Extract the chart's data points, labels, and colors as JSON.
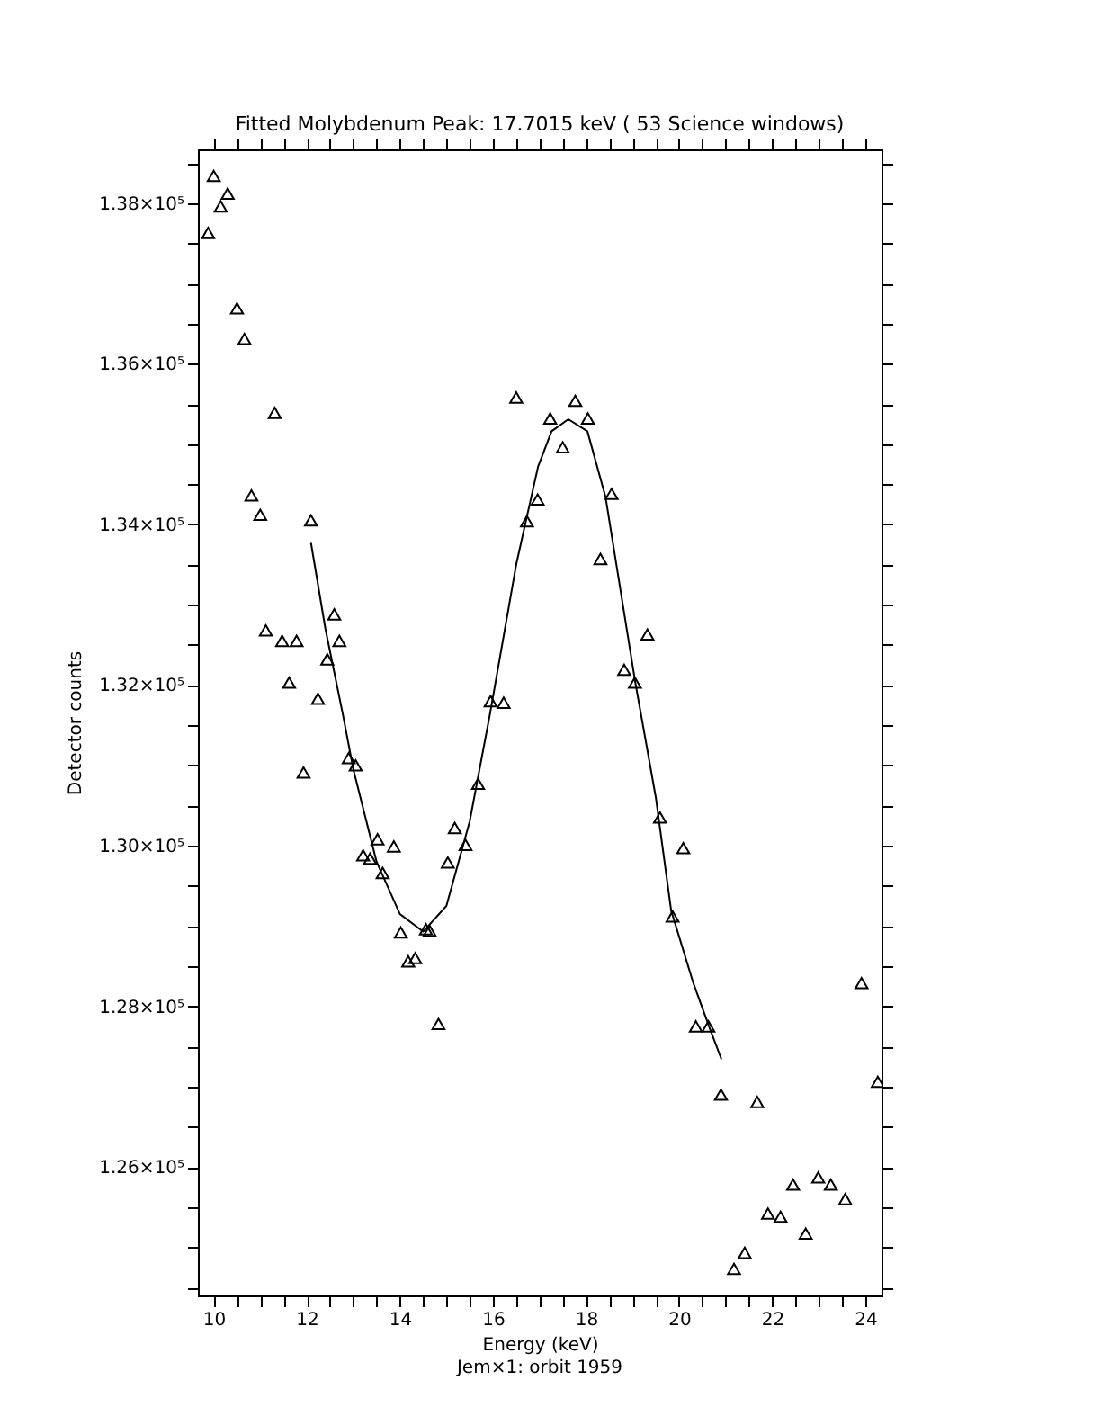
{
  "chart_data": {
    "type": "scatter",
    "title": "Fitted Molybdenum Peak: 17.7015 keV ( 53 Science windows)",
    "xlabel": "Energy (keV)",
    "ylabel": "Detector counts",
    "annotations": [
      "Jem×1: orbit 1959"
    ],
    "xlim": [
      9.66,
      24.35
    ],
    "xticks": [
      10,
      {
        "value": 10.5,
        "label": null
      },
      {
        "value": 11,
        "label": null
      },
      {
        "value": 11.5,
        "label": null
      },
      12,
      {
        "value": 12.5,
        "label": null
      },
      {
        "value": 13,
        "label": null
      },
      {
        "value": 13.5,
        "label": null
      },
      14,
      {
        "value": 14.5,
        "label": null
      },
      {
        "value": 15,
        "label": null
      },
      {
        "value": 15.5,
        "label": null
      },
      16,
      {
        "value": 16.5,
        "label": null
      },
      {
        "value": 17,
        "label": null
      },
      {
        "value": 17.5,
        "label": null
      },
      18,
      {
        "value": 18.5,
        "label": null
      },
      {
        "value": 19,
        "label": null
      },
      {
        "value": 19.5,
        "label": null
      },
      20,
      {
        "value": 20.5,
        "label": null
      },
      {
        "value": 21,
        "label": null
      },
      {
        "value": 21.5,
        "label": null
      },
      22,
      {
        "value": 22.5,
        "label": null
      },
      {
        "value": 23,
        "label": null
      },
      {
        "value": 23.5,
        "label": null
      },
      24
    ],
    "ylim": [
      124400,
      138670
    ],
    "yticks": [
      {
        "value": 124500,
        "label": null
      },
      {
        "value": 125000,
        "label": null
      },
      {
        "value": 125500,
        "label": null
      },
      {
        "value": 126000,
        "label": "1.26×10⁵"
      },
      {
        "value": 126500,
        "label": null
      },
      {
        "value": 127000,
        "label": null
      },
      {
        "value": 127500,
        "label": null
      },
      {
        "value": 128000,
        "label": "1.28×10⁵"
      },
      {
        "value": 128500,
        "label": null
      },
      {
        "value": 129000,
        "label": null
      },
      {
        "value": 129500,
        "label": null
      },
      {
        "value": 130000,
        "label": "1.30×10⁵"
      },
      {
        "value": 130500,
        "label": null
      },
      {
        "value": 131000,
        "label": null
      },
      {
        "value": 131500,
        "label": null
      },
      {
        "value": 132000,
        "label": "1.32×10⁵"
      },
      {
        "value": 132500,
        "label": null
      },
      {
        "value": 133000,
        "label": null
      },
      {
        "value": 133500,
        "label": null
      },
      {
        "value": 134000,
        "label": "1.34×10⁵"
      },
      {
        "value": 134500,
        "label": null
      },
      {
        "value": 135000,
        "label": null
      },
      {
        "value": 135500,
        "label": null
      },
      {
        "value": 136000,
        "label": "1.36×10⁵"
      },
      {
        "value": 136500,
        "label": null
      },
      {
        "value": 137000,
        "label": null
      },
      {
        "value": 137500,
        "label": null
      },
      {
        "value": 138000,
        "label": "1.38×10⁵"
      },
      {
        "value": 138500,
        "label": null
      }
    ],
    "marker": "triangle",
    "series": [
      {
        "color": "#000000",
        "x": [
          9.88,
          10.0,
          10.15,
          10.3,
          10.5,
          10.66,
          11.31,
          10.81,
          11.0,
          11.12,
          11.47,
          11.78,
          11.62,
          12.09,
          11.93,
          12.24,
          12.59,
          12.7,
          12.44,
          12.9,
          13.05,
          13.21,
          13.36,
          13.52,
          13.63,
          13.87,
          14.02,
          14.18,
          14.33,
          14.56,
          14.64,
          14.83,
          15.03,
          15.18,
          15.41,
          15.68,
          15.95,
          16.23,
          16.5,
          16.73,
          16.96,
          17.23,
          17.5,
          17.77,
          18.04,
          18.31,
          18.55,
          18.82,
          19.05,
          19.32,
          19.59,
          19.86,
          20.09,
          20.36,
          20.63,
          20.9,
          21.68,
          21.18,
          21.41,
          21.91,
          22.18,
          22.45,
          22.72,
          22.99,
          23.26,
          23.57,
          23.92,
          24.27
        ],
        "values": [
          137630,
          138340,
          137960,
          138120,
          136690,
          136310,
          135390,
          134360,
          134120,
          132680,
          132550,
          132550,
          132030,
          134050,
          130910,
          131830,
          132880,
          132550,
          132320,
          131090,
          131000,
          129880,
          129840,
          130080,
          129660,
          129990,
          128920,
          128560,
          128600,
          128960,
          128940,
          127780,
          129790,
          130220,
          130010,
          130770,
          131800,
          131780,
          135580,
          134040,
          134310,
          135320,
          134960,
          135540,
          135320,
          133570,
          134380,
          132190,
          132030,
          132630,
          130350,
          129120,
          129970,
          127750,
          127750,
          126900,
          126810,
          124730,
          124930,
          125420,
          125380,
          125780,
          125170,
          125870,
          125780,
          125600,
          128290,
          127060
        ]
      },
      {
        "type": "line",
        "color": "#000000",
        "marker": "none",
        "x": [
          12.09,
          12.4,
          12.78,
          13.0,
          13.5,
          14.0,
          14.5,
          15.0,
          15.5,
          15.93,
          16.5,
          16.97,
          17.26,
          17.62,
          18.03,
          18.42,
          19.06,
          19.5,
          19.83,
          20.3,
          20.65,
          20.91
        ],
        "values": [
          133770,
          132700,
          131620,
          130950,
          129800,
          129150,
          128930,
          129250,
          130300,
          131620,
          133500,
          134720,
          135160,
          135310,
          135160,
          134340,
          132030,
          130600,
          129190,
          128300,
          127740,
          127340
        ]
      }
    ]
  }
}
